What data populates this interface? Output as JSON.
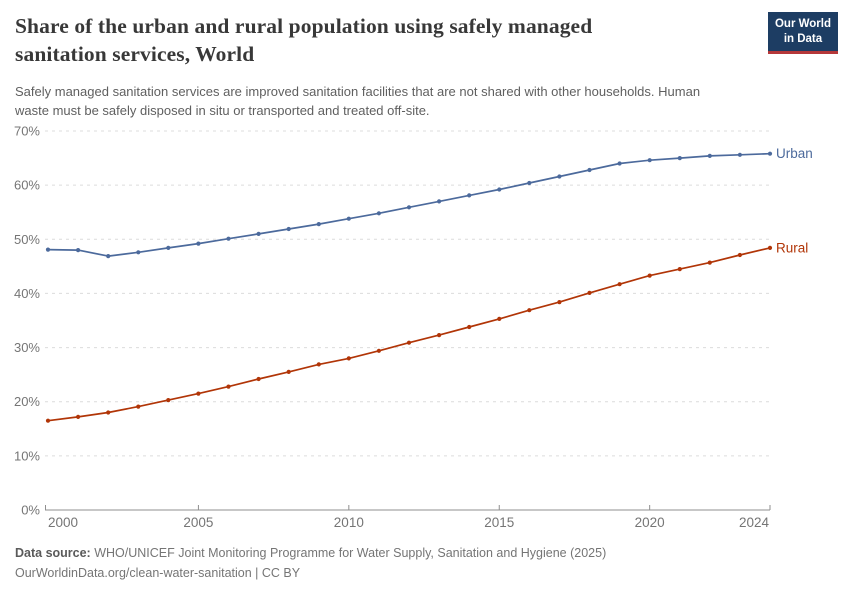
{
  "header": {
    "logo": {
      "line1": "Our World",
      "line2": "in Data",
      "bg_color": "#1d3d63",
      "accent_color": "#b5383a"
    }
  },
  "chart_data": {
    "type": "line",
    "title": "Share of the urban and rural population using safely managed sanitation services, World",
    "subtitle": "Safely managed sanitation services are improved sanitation facilities that are not shared with other households. Human waste must be safely disposed in situ or transported and treated off-site.",
    "xlabel": "",
    "ylabel": "",
    "x": [
      2000,
      2001,
      2002,
      2003,
      2004,
      2005,
      2006,
      2007,
      2008,
      2009,
      2010,
      2011,
      2012,
      2013,
      2014,
      2015,
      2016,
      2017,
      2018,
      2019,
      2020,
      2021,
      2022,
      2023,
      2024
    ],
    "series": [
      {
        "name": "Urban",
        "color": "#4C6A9C",
        "values": [
          48.1,
          48.0,
          46.9,
          47.6,
          48.4,
          49.2,
          50.1,
          51.0,
          51.9,
          52.8,
          53.8,
          54.8,
          55.9,
          57.0,
          58.1,
          59.2,
          60.4,
          61.6,
          62.8,
          64.0,
          64.6,
          65.0,
          65.4,
          65.6,
          65.8
        ]
      },
      {
        "name": "Rural",
        "color": "#B13507",
        "values": [
          16.5,
          17.2,
          18.0,
          19.1,
          20.3,
          21.5,
          22.8,
          24.2,
          25.5,
          26.9,
          28.0,
          29.4,
          30.9,
          32.3,
          33.8,
          35.3,
          36.9,
          38.4,
          40.1,
          41.7,
          43.3,
          44.5,
          45.7,
          47.1,
          48.4
        ]
      }
    ],
    "ylim": [
      0,
      70
    ],
    "yticks": [
      0,
      10,
      20,
      30,
      40,
      50,
      60,
      70
    ],
    "ytick_suffix": "%",
    "xticks": [
      2000,
      2005,
      2010,
      2015,
      2020,
      2024
    ],
    "grid": "horizontal-dashed",
    "legend_position": "end-of-line",
    "style": {
      "grid_color": "#dcdcdc",
      "axis_color": "#8f8f8f",
      "tick_label_color": "#757575",
      "line_width": 1.7,
      "marker_radius": 2.1
    }
  },
  "footer": {
    "datasource_label": "Data source:",
    "datasource_text": "WHO/UNICEF Joint Monitoring Programme for Water Supply, Sanitation and Hygiene (2025)",
    "license_line": "OurWorldinData.org/clean-water-sanitation | CC BY"
  }
}
